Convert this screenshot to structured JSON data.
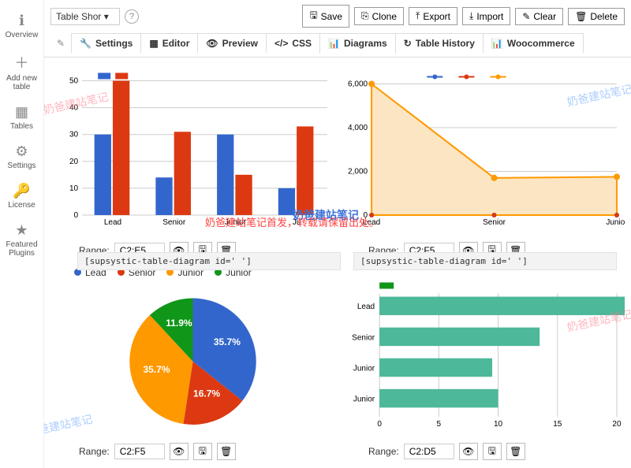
{
  "sidebar": {
    "items": [
      {
        "icon": "ℹ",
        "label": "Overview"
      },
      {
        "icon": "＋",
        "label": "Add new table"
      },
      {
        "icon": "▦",
        "label": "Tables"
      },
      {
        "icon": "⚙",
        "label": "Settings"
      },
      {
        "icon": "🔑",
        "label": "License"
      },
      {
        "icon": "★",
        "label": "Featured Plugins"
      }
    ]
  },
  "topbar": {
    "dropdown": "Table Shor ▾",
    "help": "?",
    "buttons": [
      {
        "icon": "🖫",
        "label": "Save"
      },
      {
        "icon": "⎘",
        "label": "Clone"
      },
      {
        "icon": "⤒",
        "label": "Export"
      },
      {
        "icon": "⤓",
        "label": "Import"
      },
      {
        "icon": "✎",
        "label": "Clear"
      },
      {
        "icon": "🗑",
        "label": "Delete"
      }
    ]
  },
  "tabs": [
    {
      "icon": "🔧",
      "label": "Settings"
    },
    {
      "icon": "▦",
      "label": "Editor"
    },
    {
      "icon": "👁",
      "label": "Preview"
    },
    {
      "icon": "</>",
      "label": "CSS"
    },
    {
      "icon": "📊",
      "label": "Diagrams",
      "active": true
    },
    {
      "icon": "↻",
      "label": "Table History"
    },
    {
      "icon": "📊",
      "label": "Woocommerce"
    }
  ],
  "bar_chart": {
    "type": "bar",
    "categories": [
      "Lead",
      "Senior",
      "Junior",
      "Ju"
    ],
    "series": [
      {
        "color": "#3366cc",
        "values": [
          30,
          14,
          30,
          10
        ]
      },
      {
        "color": "#dc3912",
        "values": [
          50,
          31,
          15,
          33
        ]
      }
    ],
    "ylim": [
      0,
      50
    ],
    "ytick_step": 10,
    "grid_color": "#cccccc",
    "background_color": "#ffffff",
    "legend_swatches": [
      "#3366cc",
      "#dc3912"
    ],
    "range_label": "Range:",
    "range_value": "C2:E5",
    "shortcode": "[supsystic-table-diagram id='  ']"
  },
  "area_chart": {
    "type": "area",
    "categories": [
      "Lead",
      "Senior",
      "Junior"
    ],
    "series": [
      {
        "color": "#3366cc",
        "values": [
          0,
          0,
          0
        ]
      },
      {
        "color": "#dc3912",
        "values": [
          0,
          0,
          0
        ]
      },
      {
        "color": "#ff9900",
        "fill": "#fce5c2",
        "values": [
          6000,
          1700,
          1750
        ]
      }
    ],
    "ylim": [
      0,
      6000
    ],
    "ytick_step": 2000,
    "grid_color": "#cccccc",
    "background_color": "#ffffff",
    "legend_swatches": [
      "#3366cc",
      "#dc3912",
      "#ff9900"
    ],
    "range_label": "Range:",
    "range_value": "C2:F5",
    "shortcode": "[supsystic-table-diagram id='   ']"
  },
  "pie_chart": {
    "type": "pie",
    "slices": [
      {
        "label": "Lead",
        "value": 35.7,
        "color": "#3366cc"
      },
      {
        "label": "Senior",
        "value": 16.7,
        "color": "#dc3912"
      },
      {
        "label": "Junior",
        "value": 35.7,
        "color": "#ff9900"
      },
      {
        "label": "Junior",
        "value": 11.9,
        "color": "#109618"
      }
    ],
    "label_color": "#ffffff",
    "label_fontsize": 12,
    "background_color": "#ffffff",
    "range_label": "Range:",
    "range_value": "C2:F5"
  },
  "hbar_chart": {
    "type": "hbar",
    "categories": [
      "Lead",
      "Senior",
      "Junior",
      "Junior"
    ],
    "top_bar": {
      "value": 1.2,
      "color": "#109618"
    },
    "values": [
      21,
      13.5,
      9.5,
      10
    ],
    "xlim": [
      0,
      20
    ],
    "xtick_step": 5,
    "bar_color": "#4db89a",
    "grid_color": "#cccccc",
    "background_color": "#ffffff",
    "range_label": "Range:",
    "range_value": "C2:D5"
  },
  "watermarks": {
    "text": "奶爸建站笔记",
    "center_text": "奶爸建站笔记首发，转载请保留出处。",
    "overlay_text": "奶爸建站笔记"
  },
  "action_icons": {
    "view": "👁",
    "save": "🖫",
    "delete": "🗑"
  }
}
